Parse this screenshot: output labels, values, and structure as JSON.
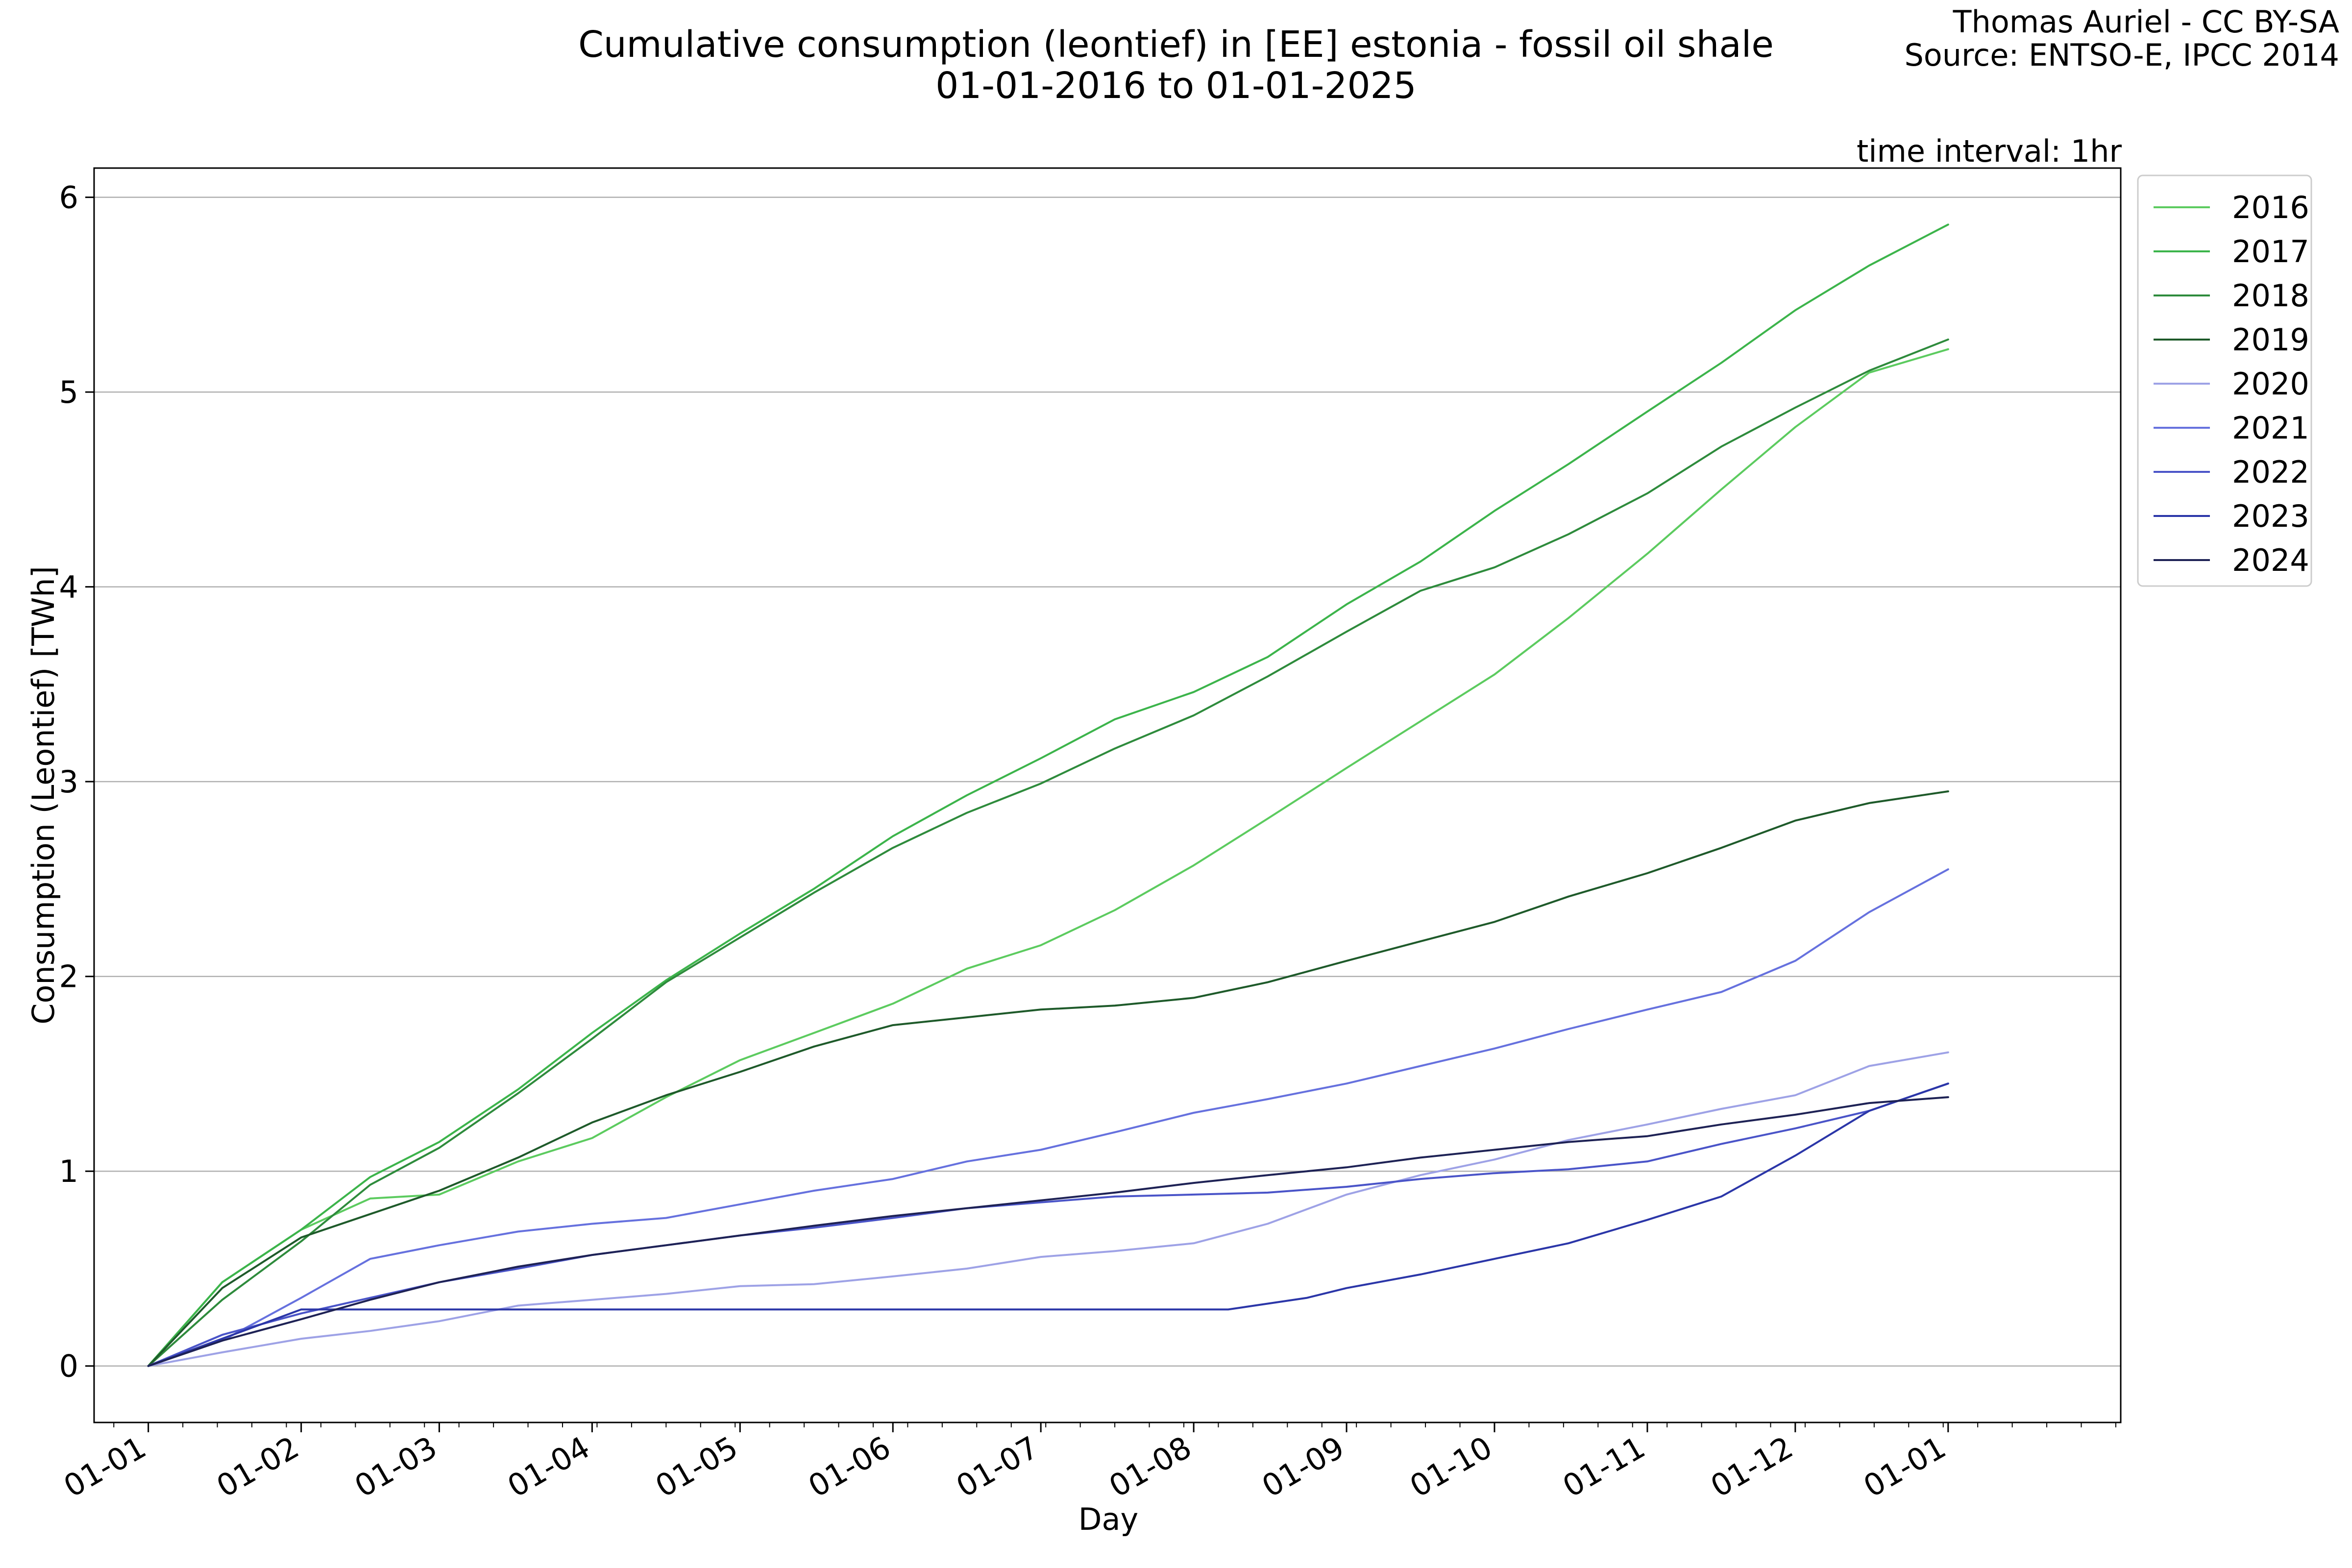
{
  "header": {
    "title_line1": "Cumulative consumption (leontief) in [EE] estonia - fossil oil shale",
    "title_line2": "01-01-2016 to 01-01-2025",
    "credit_line1": "Thomas Auriel - CC BY-SA",
    "credit_line2": "Source: ENTSO-E, IPCC 2014",
    "interval_note": "time interval: 1hr"
  },
  "chart_data": {
    "type": "line",
    "xlabel": "Day",
    "ylabel": "Consumption (Leontief) [TWh]",
    "x_unit": "day of year",
    "xlim": [
      -11,
      400
    ],
    "ylim": [
      -0.29,
      6.15
    ],
    "grid": "horizontal",
    "legend_position": "outside-top-right",
    "xtick_days": [
      0,
      31,
      59,
      90,
      120,
      151,
      181,
      212,
      243,
      273,
      304,
      334,
      365
    ],
    "xtick_labels": [
      "01-01",
      "01-02",
      "01-03",
      "01-04",
      "01-05",
      "01-06",
      "01-07",
      "01-08",
      "01-09",
      "01-10",
      "01-11",
      "01-12",
      "01-01"
    ],
    "ytick_values": [
      0,
      1,
      2,
      3,
      4,
      5,
      6
    ],
    "ytick_labels": [
      "0",
      "1",
      "2",
      "3",
      "4",
      "5",
      "6"
    ],
    "series": [
      {
        "name": "2016",
        "color": "#5ccb5f",
        "x": [
          0,
          15,
          31,
          45,
          59,
          75,
          90,
          105,
          120,
          135,
          151,
          166,
          181,
          196,
          212,
          227,
          243,
          258,
          273,
          288,
          304,
          319,
          334,
          349,
          365
        ],
        "y": [
          0,
          0.43,
          0.7,
          0.86,
          0.88,
          1.05,
          1.17,
          1.38,
          1.57,
          1.71,
          1.86,
          2.04,
          2.16,
          2.34,
          2.57,
          2.81,
          3.07,
          3.31,
          3.55,
          3.84,
          4.17,
          4.5,
          4.82,
          5.1,
          5.22
        ]
      },
      {
        "name": "2017",
        "color": "#3cb44b",
        "x": [
          0,
          15,
          31,
          45,
          59,
          75,
          90,
          105,
          120,
          135,
          151,
          166,
          181,
          196,
          212,
          227,
          243,
          258,
          273,
          288,
          304,
          319,
          334,
          349,
          365
        ],
        "y": [
          0,
          0.43,
          0.7,
          0.97,
          1.15,
          1.42,
          1.71,
          1.98,
          2.22,
          2.45,
          2.72,
          2.93,
          3.12,
          3.32,
          3.46,
          3.64,
          3.91,
          4.13,
          4.39,
          4.63,
          4.9,
          5.15,
          5.42,
          5.65,
          5.86
        ]
      },
      {
        "name": "2018",
        "color": "#2e8b3c",
        "x": [
          0,
          15,
          31,
          45,
          59,
          75,
          90,
          105,
          120,
          135,
          151,
          166,
          181,
          196,
          212,
          227,
          243,
          258,
          273,
          288,
          304,
          319,
          334,
          349,
          365
        ],
        "y": [
          0,
          0.34,
          0.64,
          0.93,
          1.12,
          1.4,
          1.68,
          1.97,
          2.2,
          2.43,
          2.66,
          2.84,
          2.99,
          3.17,
          3.34,
          3.54,
          3.77,
          3.98,
          4.1,
          4.27,
          4.48,
          4.72,
          4.92,
          5.11,
          5.27
        ]
      },
      {
        "name": "2019",
        "color": "#1e5a2a",
        "x": [
          0,
          15,
          31,
          45,
          59,
          75,
          90,
          105,
          120,
          135,
          151,
          166,
          181,
          196,
          212,
          227,
          243,
          258,
          273,
          288,
          304,
          319,
          334,
          349,
          365
        ],
        "y": [
          0,
          0.4,
          0.66,
          0.78,
          0.9,
          1.07,
          1.25,
          1.39,
          1.51,
          1.64,
          1.75,
          1.79,
          1.83,
          1.85,
          1.89,
          1.97,
          2.08,
          2.18,
          2.28,
          2.41,
          2.53,
          2.66,
          2.8,
          2.89,
          2.95
        ]
      },
      {
        "name": "2020",
        "color": "#9ea2e6",
        "x": [
          0,
          15,
          31,
          45,
          59,
          75,
          90,
          105,
          120,
          135,
          151,
          166,
          181,
          196,
          212,
          227,
          243,
          258,
          273,
          288,
          304,
          319,
          334,
          349,
          365
        ],
        "y": [
          0,
          0.07,
          0.14,
          0.18,
          0.23,
          0.31,
          0.34,
          0.37,
          0.41,
          0.42,
          0.46,
          0.5,
          0.56,
          0.59,
          0.63,
          0.73,
          0.88,
          0.98,
          1.06,
          1.16,
          1.24,
          1.32,
          1.39,
          1.54,
          1.61
        ]
      },
      {
        "name": "2021",
        "color": "#6671de",
        "x": [
          0,
          15,
          31,
          45,
          59,
          75,
          90,
          105,
          120,
          135,
          151,
          166,
          181,
          196,
          212,
          227,
          243,
          258,
          273,
          288,
          304,
          319,
          334,
          349,
          365
        ],
        "y": [
          0,
          0.13,
          0.35,
          0.55,
          0.62,
          0.69,
          0.73,
          0.76,
          0.83,
          0.9,
          0.96,
          1.05,
          1.11,
          1.2,
          1.3,
          1.37,
          1.45,
          1.54,
          1.63,
          1.73,
          1.83,
          1.92,
          2.08,
          2.33,
          2.55
        ]
      },
      {
        "name": "2022",
        "color": "#4a54c8",
        "x": [
          0,
          15,
          31,
          45,
          59,
          75,
          90,
          105,
          120,
          135,
          151,
          166,
          181,
          196,
          212,
          227,
          243,
          258,
          273,
          288,
          304,
          319,
          334,
          349,
          365
        ],
        "y": [
          0,
          0.16,
          0.27,
          0.35,
          0.43,
          0.5,
          0.57,
          0.62,
          0.67,
          0.71,
          0.76,
          0.81,
          0.84,
          0.87,
          0.88,
          0.89,
          0.92,
          0.96,
          0.99,
          1.01,
          1.05,
          1.14,
          1.22,
          1.31,
          1.45
        ]
      },
      {
        "name": "2023",
        "color": "#2b36a8",
        "x": [
          0,
          31,
          59,
          90,
          120,
          151,
          181,
          212,
          219,
          227,
          235,
          243,
          258,
          273,
          288,
          304,
          319,
          334,
          349,
          365
        ],
        "y": [
          0,
          0.29,
          0.29,
          0.29,
          0.29,
          0.29,
          0.29,
          0.29,
          0.29,
          0.32,
          0.35,
          0.4,
          0.47,
          0.55,
          0.63,
          0.75,
          0.87,
          1.08,
          1.31,
          1.45
        ]
      },
      {
        "name": "2024",
        "color": "#1e2255",
        "x": [
          0,
          15,
          31,
          45,
          59,
          75,
          90,
          105,
          120,
          135,
          151,
          166,
          181,
          196,
          212,
          227,
          243,
          258,
          273,
          288,
          304,
          319,
          334,
          349,
          365
        ],
        "y": [
          0,
          0.13,
          0.24,
          0.34,
          0.43,
          0.51,
          0.57,
          0.62,
          0.67,
          0.72,
          0.77,
          0.81,
          0.85,
          0.89,
          0.94,
          0.98,
          1.02,
          1.07,
          1.11,
          1.15,
          1.18,
          1.24,
          1.29,
          1.35,
          1.38
        ]
      }
    ]
  }
}
